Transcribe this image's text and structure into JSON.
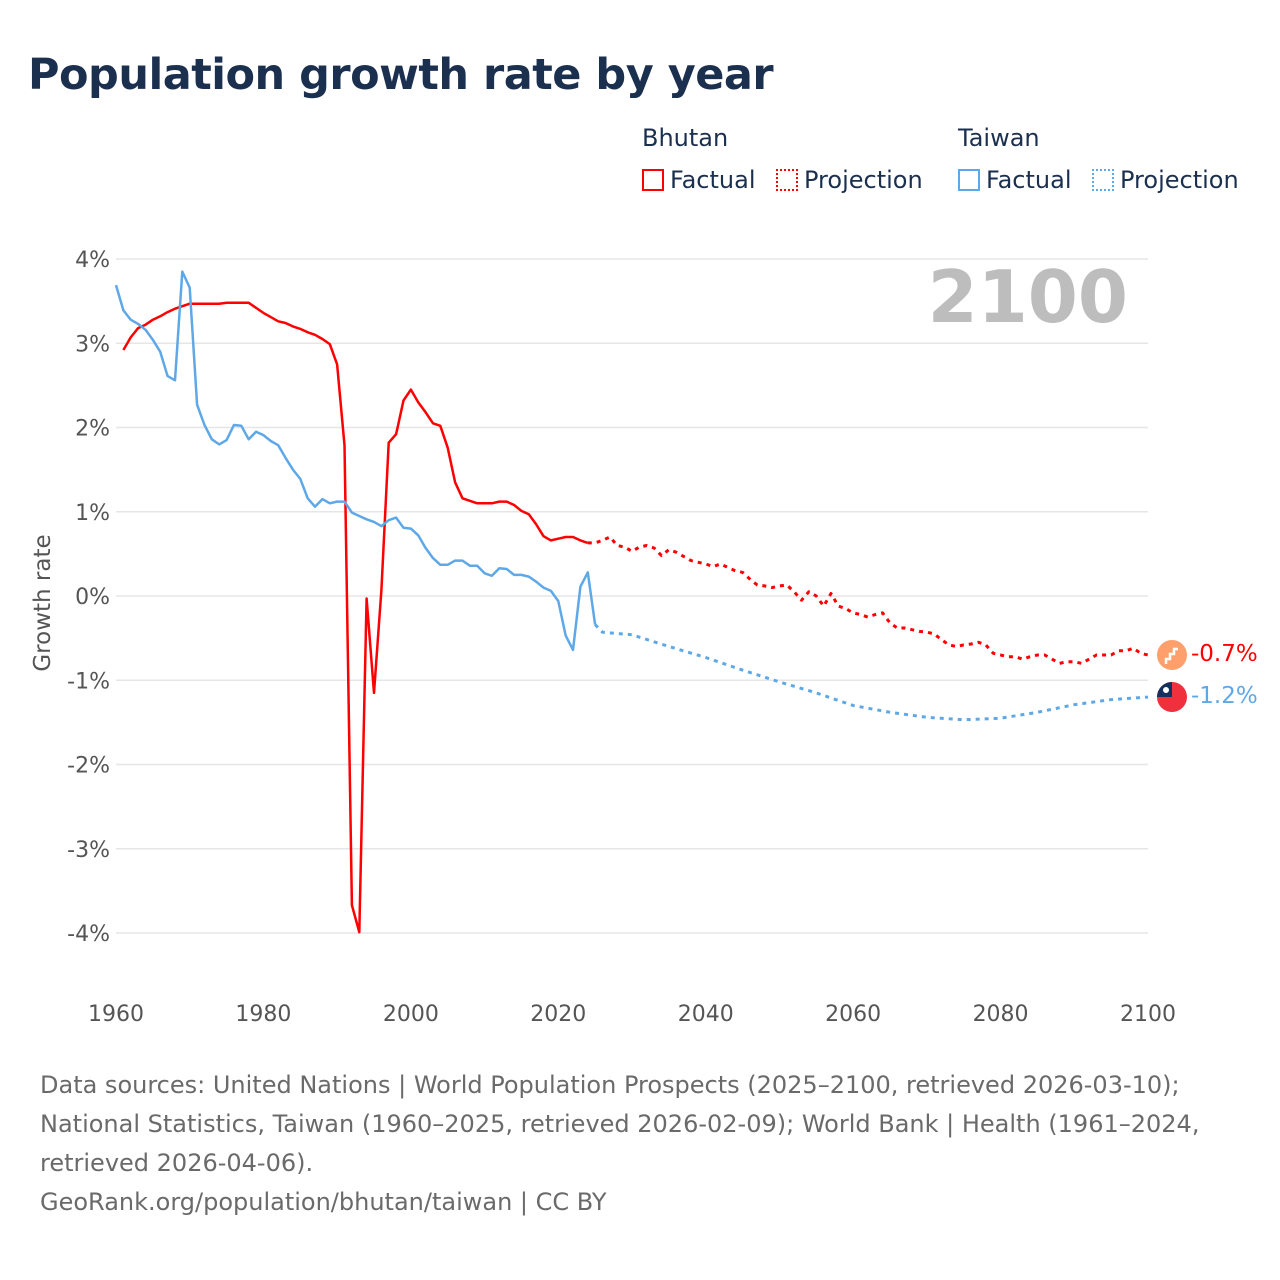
{
  "title": "Population growth rate by year",
  "legend": [
    {
      "group": "Bhutan",
      "color": "#ff0000",
      "items": [
        "Factual",
        "Projection"
      ]
    },
    {
      "group": "Taiwan",
      "color": "#5fa8e8",
      "items": [
        "Factual",
        "Projection"
      ]
    }
  ],
  "year_watermark": "2100",
  "end_labels": {
    "bhutan": "-0.7%",
    "taiwan": "-1.2%"
  },
  "footer": {
    "sources": "Data sources: United Nations | World Population Prospects (2025–2100, retrieved 2026-03-10); National Statistics, Taiwan (1960–2025, retrieved 2026-02-09); World Bank | Health (1961–2024, retrieved 2026-04-06).",
    "link": "GeoRank.org/population/bhutan/taiwan | CC BY"
  },
  "chart_data": {
    "type": "line",
    "title": "Population growth rate by year",
    "xlabel": "",
    "ylabel": "Growth rate",
    "xlim": [
      1960,
      2100
    ],
    "ylim": [
      -4,
      4
    ],
    "x_ticks": [
      "1960",
      "1980",
      "2000",
      "2020",
      "2040",
      "2060",
      "2080",
      "2100"
    ],
    "y_ticks": [
      "4%",
      "3%",
      "2%",
      "1%",
      "0%",
      "-1%",
      "-2%",
      "-3%",
      "-4%"
    ],
    "grid": true,
    "series": [
      {
        "name": "Bhutan Factual",
        "color": "#ff0000",
        "style": "solid",
        "x": [
          1961,
          1962,
          1963,
          1964,
          1965,
          1966,
          1967,
          1968,
          1969,
          1970,
          1971,
          1972,
          1973,
          1974,
          1975,
          1976,
          1977,
          1978,
          1979,
          1980,
          1981,
          1982,
          1983,
          1984,
          1985,
          1986,
          1987,
          1988,
          1989,
          1990,
          1991,
          1992,
          1993,
          1994,
          1995,
          1996,
          1997,
          1998,
          1999,
          2000,
          2001,
          2002,
          2003,
          2004,
          2005,
          2006,
          2007,
          2008,
          2009,
          2010,
          2011,
          2012,
          2013,
          2014,
          2015,
          2016,
          2017,
          2018,
          2019,
          2020,
          2021,
          2022,
          2023,
          2024
        ],
        "y": [
          2.92,
          3.07,
          3.18,
          3.22,
          3.28,
          3.32,
          3.37,
          3.41,
          3.44,
          3.47,
          3.47,
          3.47,
          3.47,
          3.47,
          3.48,
          3.48,
          3.48,
          3.48,
          3.42,
          3.36,
          3.31,
          3.26,
          3.24,
          3.2,
          3.17,
          3.13,
          3.1,
          3.05,
          2.99,
          2.75,
          1.79,
          -3.67,
          -3.99,
          -0.03,
          -1.15,
          0.07,
          1.82,
          1.92,
          2.32,
          2.45,
          2.3,
          2.18,
          2.05,
          2.02,
          1.76,
          1.35,
          1.16,
          1.13,
          1.1,
          1.1,
          1.1,
          1.12,
          1.12,
          1.08,
          1.01,
          0.97,
          0.85,
          0.71,
          0.66,
          0.68,
          0.7,
          0.7,
          0.66,
          0.63
        ]
      },
      {
        "name": "Bhutan Projection",
        "color": "#ff0000",
        "style": "dotted",
        "x": [
          2024,
          2025,
          2026,
          2027,
          2028,
          2029,
          2030,
          2031,
          2032,
          2033,
          2034,
          2035,
          2036,
          2037,
          2038,
          2039,
          2040,
          2041,
          2042,
          2043,
          2044,
          2045,
          2046,
          2047,
          2048,
          2049,
          2050,
          2051,
          2052,
          2053,
          2054,
          2055,
          2056,
          2057,
          2058,
          2059,
          2060,
          2061,
          2062,
          2063,
          2064,
          2065,
          2066,
          2067,
          2068,
          2069,
          2070,
          2071,
          2072,
          2073,
          2074,
          2075,
          2076,
          2077,
          2078,
          2079,
          2080,
          2081,
          2082,
          2083,
          2084,
          2085,
          2086,
          2087,
          2088,
          2089,
          2090,
          2091,
          2092,
          2093,
          2094,
          2095,
          2096,
          2097,
          2098,
          2099,
          2100
        ],
        "y": [
          0.63,
          0.63,
          0.66,
          0.7,
          0.6,
          0.58,
          0.53,
          0.58,
          0.6,
          0.57,
          0.48,
          0.55,
          0.52,
          0.47,
          0.42,
          0.4,
          0.38,
          0.35,
          0.38,
          0.34,
          0.3,
          0.28,
          0.2,
          0.13,
          0.12,
          0.1,
          0.12,
          0.13,
          0.05,
          -0.05,
          0.05,
          0.0,
          -0.12,
          0.03,
          -0.12,
          -0.15,
          -0.2,
          -0.22,
          -0.25,
          -0.22,
          -0.2,
          -0.32,
          -0.38,
          -0.38,
          -0.4,
          -0.42,
          -0.43,
          -0.45,
          -0.52,
          -0.58,
          -0.6,
          -0.58,
          -0.57,
          -0.55,
          -0.58,
          -0.68,
          -0.7,
          -0.72,
          -0.72,
          -0.75,
          -0.72,
          -0.7,
          -0.7,
          -0.75,
          -0.8,
          -0.78,
          -0.78,
          -0.8,
          -0.75,
          -0.7,
          -0.7,
          -0.7,
          -0.65,
          -0.65,
          -0.62,
          -0.68,
          -0.7
        ]
      },
      {
        "name": "Taiwan Factual",
        "color": "#5fa8e8",
        "style": "solid",
        "x": [
          1960,
          1961,
          1962,
          1963,
          1964,
          1965,
          1966,
          1967,
          1968,
          1969,
          1970,
          1971,
          1972,
          1973,
          1974,
          1975,
          1976,
          1977,
          1978,
          1979,
          1980,
          1981,
          1982,
          1983,
          1984,
          1985,
          1986,
          1987,
          1988,
          1989,
          1990,
          1991,
          1992,
          1993,
          1994,
          1995,
          1996,
          1997,
          1998,
          1999,
          2000,
          2001,
          2002,
          2003,
          2004,
          2005,
          2006,
          2007,
          2008,
          2009,
          2010,
          2011,
          2012,
          2013,
          2014,
          2015,
          2016,
          2017,
          2018,
          2019,
          2020,
          2021,
          2022,
          2023,
          2024,
          2025
        ],
        "y": [
          3.69,
          3.39,
          3.28,
          3.23,
          3.16,
          3.04,
          2.9,
          2.61,
          2.56,
          3.85,
          3.66,
          2.27,
          2.03,
          1.86,
          1.8,
          1.85,
          2.03,
          2.02,
          1.86,
          1.95,
          1.91,
          1.84,
          1.79,
          1.64,
          1.5,
          1.39,
          1.16,
          1.06,
          1.15,
          1.1,
          1.12,
          1.12,
          0.99,
          0.95,
          0.91,
          0.88,
          0.83,
          0.9,
          0.93,
          0.81,
          0.8,
          0.72,
          0.57,
          0.45,
          0.37,
          0.37,
          0.42,
          0.42,
          0.36,
          0.36,
          0.27,
          0.24,
          0.33,
          0.32,
          0.25,
          0.25,
          0.23,
          0.17,
          0.1,
          0.06,
          -0.06,
          -0.47,
          -0.64,
          0.11,
          0.28,
          -0.34
        ]
      },
      {
        "name": "Taiwan Projection",
        "color": "#5fa8e8",
        "style": "dotted",
        "x": [
          2025,
          2026,
          2030,
          2035,
          2040,
          2045,
          2050,
          2055,
          2060,
          2065,
          2070,
          2075,
          2080,
          2085,
          2090,
          2095,
          2100
        ],
        "y": [
          -0.34,
          -0.43,
          -0.46,
          -0.6,
          -0.73,
          -0.88,
          -1.02,
          -1.15,
          -1.3,
          -1.38,
          -1.44,
          -1.47,
          -1.45,
          -1.38,
          -1.29,
          -1.23,
          -1.2
        ]
      }
    ]
  }
}
